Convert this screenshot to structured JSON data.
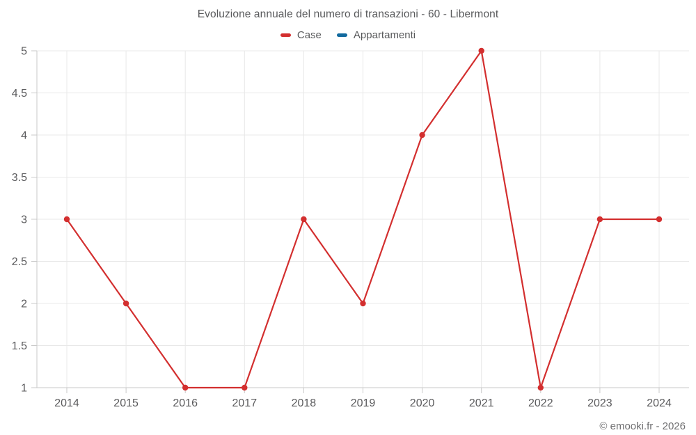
{
  "title": "Evoluzione annuale del numero di transazioni - 60 - Libermont",
  "legend": [
    {
      "label": "Case",
      "color": "#d32f2f"
    },
    {
      "label": "Appartamenti",
      "color": "#11699e"
    }
  ],
  "watermark": "© emooki.fr - 2026",
  "colors": {
    "grid": "#e8e8e8",
    "axis": "#c9c9c9",
    "tick_label": "#5b5b5d"
  },
  "chart_data": {
    "type": "line",
    "title": "Evoluzione annuale del numero di transazioni - 60 - Libermont",
    "x": [
      2014,
      2015,
      2016,
      2017,
      2018,
      2019,
      2020,
      2021,
      2022,
      2023,
      2024
    ],
    "series": [
      {
        "name": "Case",
        "color": "#d32f2f",
        "values": [
          3,
          2,
          1,
          1,
          3,
          2,
          4,
          5,
          1,
          3,
          3
        ]
      },
      {
        "name": "Appartamenti",
        "color": "#11699e",
        "values": []
      }
    ],
    "xlabel": "",
    "ylabel": "",
    "ylim": [
      1,
      5
    ],
    "ytick_step": 0.5,
    "grid": true,
    "legend_position": "top",
    "marker": "circle"
  }
}
